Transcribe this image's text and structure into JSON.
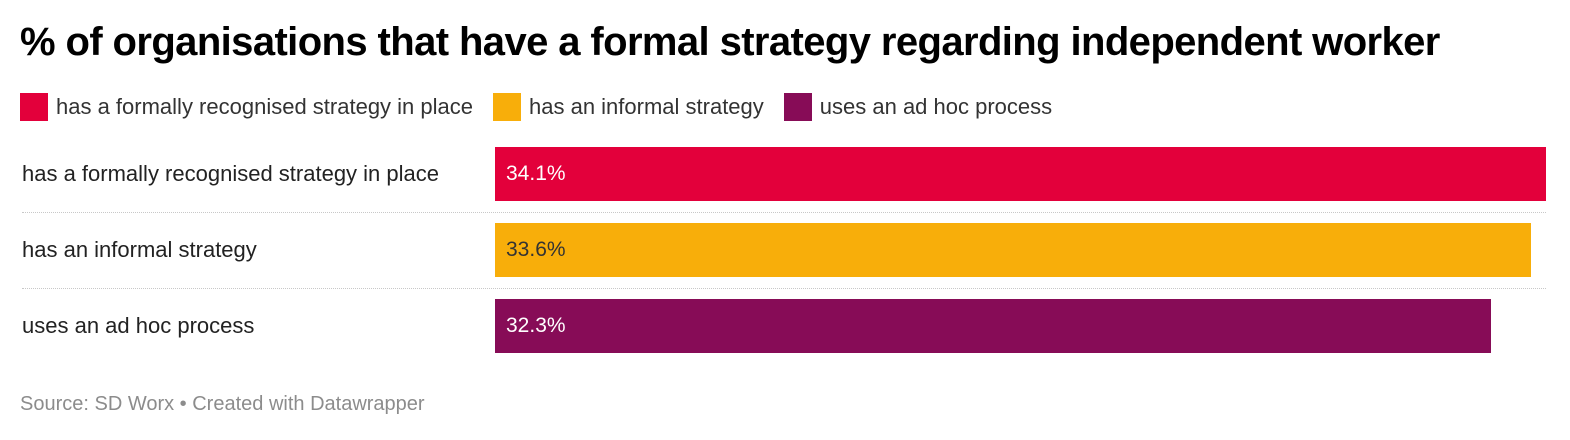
{
  "title": "% of organisations that have a formal strategy regarding independent worker",
  "legend": [
    {
      "label": "has a formally recognised strategy in place",
      "color": "#e3003b"
    },
    {
      "label": "has an informal strategy",
      "color": "#f8ae0a"
    },
    {
      "label": "uses an ad hoc process",
      "color": "#870c57"
    }
  ],
  "chart_data": {
    "type": "bar",
    "orientation": "horizontal",
    "categories": [
      "has a formally recognised strategy in place",
      "has an informal strategy",
      "uses an ad hoc process"
    ],
    "values": [
      34.1,
      33.6,
      32.3
    ],
    "value_labels": [
      "34.1%",
      "33.6%",
      "32.3%"
    ],
    "colors": [
      "#e3003b",
      "#f8ae0a",
      "#870c57"
    ],
    "label_colors": [
      "#ffffff",
      "#333333",
      "#ffffff"
    ],
    "unit": "%",
    "title": "% of organisations that have a formal strategy regarding independent worker",
    "xlabel": "",
    "ylabel": "",
    "xlim": [
      0,
      34.1
    ],
    "grid": false,
    "legend_position": "top-left"
  },
  "footer": {
    "source": "Source: SD Worx • Created with Datawrapper"
  }
}
